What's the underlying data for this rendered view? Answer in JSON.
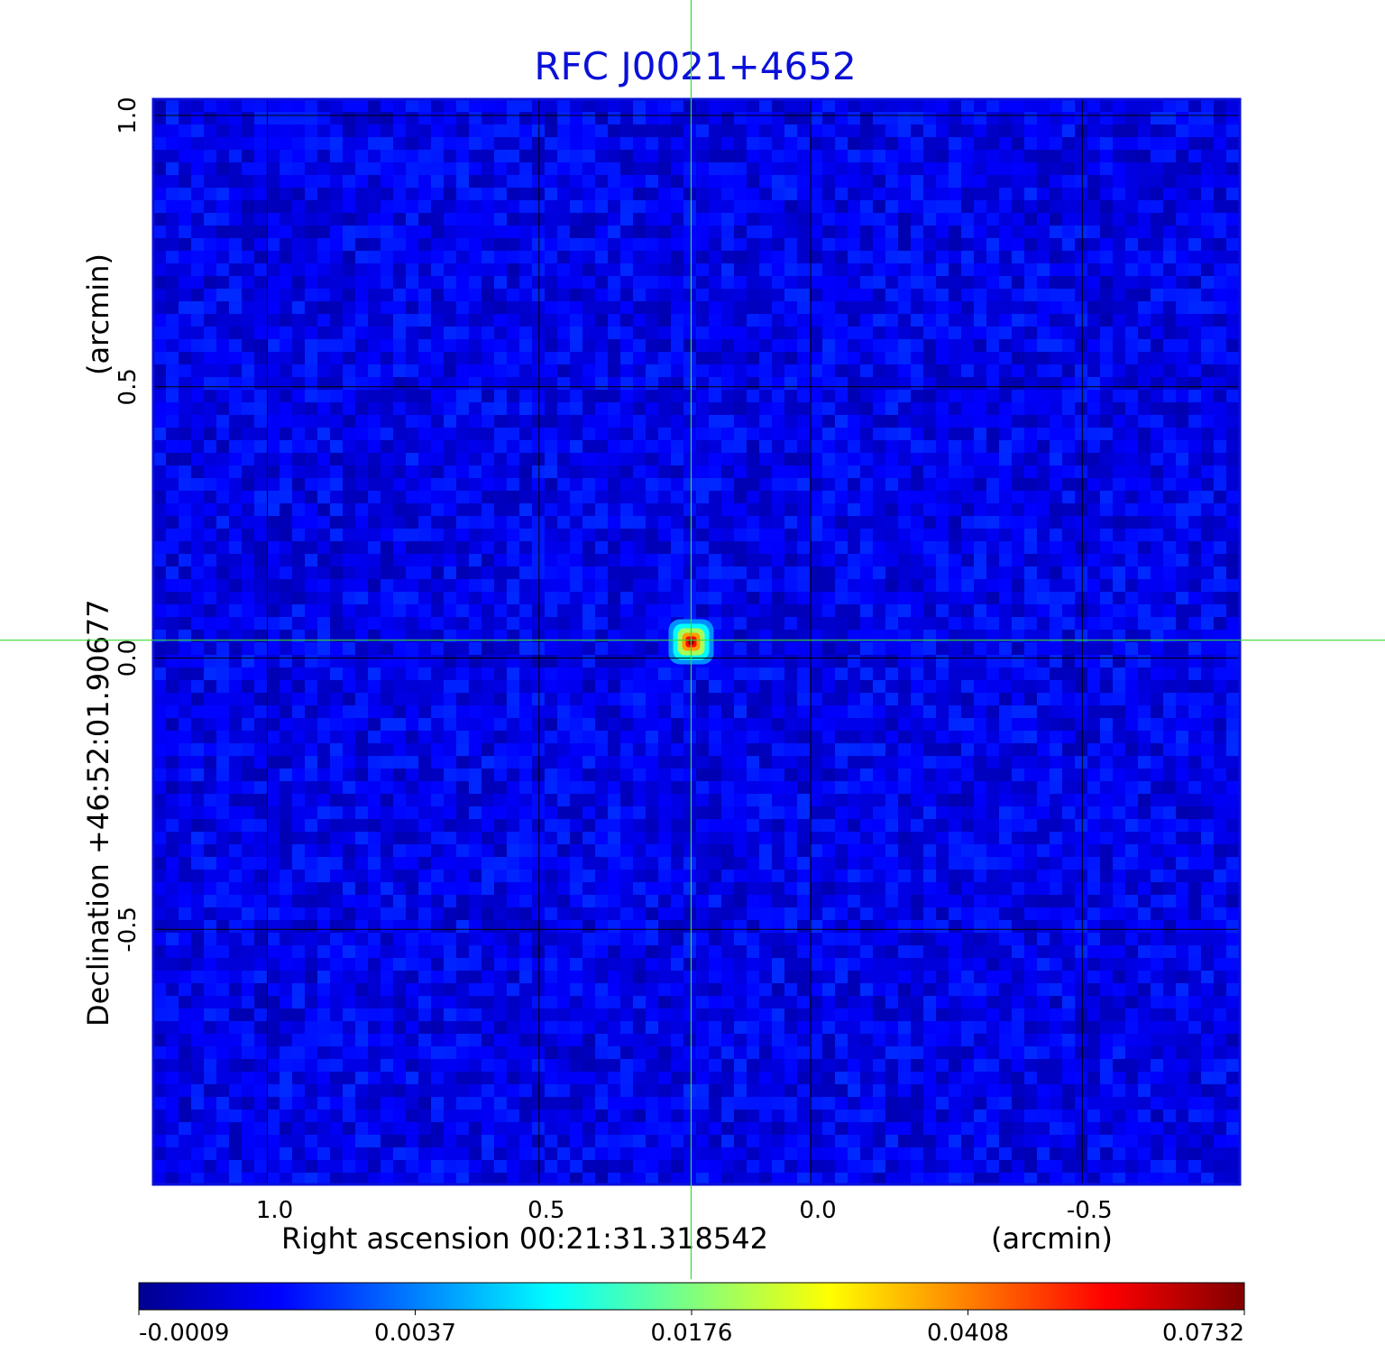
{
  "chart_data": {
    "type": "heatmap",
    "title": "RFC J0021+4652",
    "title_color": "#0a10d8",
    "xlabel": "Right ascension  00:21:31.318542",
    "xunit": "(arcmin)",
    "ylabel": "Declination  +46:52:01.90677",
    "yunit": "(arcmin)",
    "x_ticks": [
      1.0,
      0.5,
      0.0,
      -0.5
    ],
    "x_tick_labels": [
      "1.0",
      "0.5",
      "0.0",
      "-0.5"
    ],
    "y_ticks": [
      1.0,
      0.5,
      0.0,
      -0.5
    ],
    "y_tick_labels": [
      "1.0",
      "0.5",
      "0.0",
      "-0.5"
    ],
    "xlim": [
      1.21,
      -0.79
    ],
    "ylim": [
      -0.97,
      1.03
    ],
    "grid": true,
    "grid_color": "#000000",
    "crosshair": {
      "x": 0.22,
      "y": 0.033,
      "color": "#33dd33"
    },
    "source": {
      "x": 0.22,
      "y": 0.03,
      "peak": 0.0732
    },
    "background_level": 0.0014,
    "colorbar": {
      "tick_values": [
        -0.0009,
        0.0037,
        0.0176,
        0.0408,
        0.0732
      ],
      "tick_labels": [
        "-0.0009",
        "0.0037",
        "0.0176",
        "0.0408",
        "0.0732"
      ],
      "colormap": "jet"
    },
    "colors": {
      "low": "#00008f",
      "background": "#1a46f5",
      "cyan": "#00ffff",
      "yellow": "#ffff00",
      "high": "#800000"
    }
  }
}
